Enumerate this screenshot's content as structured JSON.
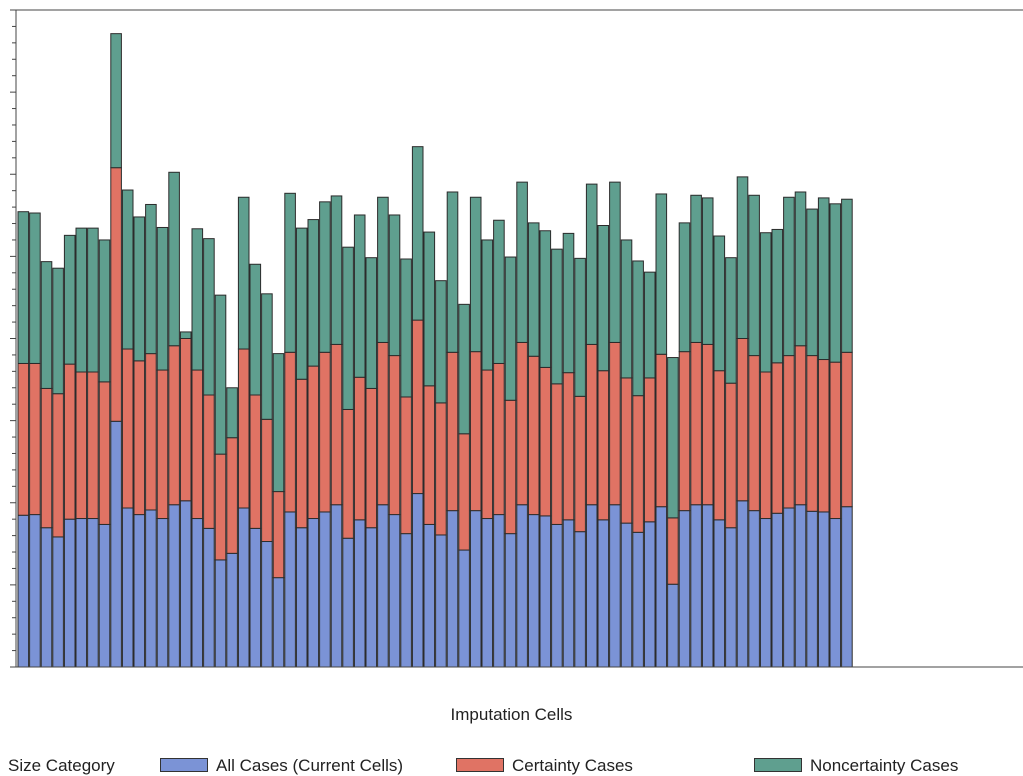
{
  "chart_data": {
    "type": "bar",
    "stacked": true,
    "title": "",
    "xlabel": "Imputation Cells",
    "ylabel": "",
    "ylim": [
      0,
      100
    ],
    "grid": false,
    "legend_placement": "bottom",
    "legend_title": "Size Category",
    "n_categories": 72,
    "series": [
      {
        "name": "All Cases (Current Cells)",
        "color": "#7b93d6",
        "values": [
          23.1,
          23.2,
          21.2,
          19.8,
          22.5,
          22.6,
          22.6,
          21.7,
          37.4,
          24.2,
          23.2,
          23.9,
          22.6,
          24.7,
          25.3,
          22.6,
          21.1,
          16.3,
          17.3,
          24.2,
          21.1,
          19.1,
          13.6,
          23.6,
          21.2,
          22.6,
          23.6,
          24.7,
          19.6,
          22.4,
          21.2,
          24.7,
          23.2,
          20.3,
          26.4,
          21.7,
          20.1,
          23.8,
          17.8,
          23.8,
          22.6,
          23.2,
          20.3,
          24.7,
          23.2,
          23.0,
          21.7,
          22.4,
          20.6,
          24.7,
          22.4,
          24.7,
          21.9,
          20.5,
          22.1,
          24.4,
          12.6,
          23.8,
          24.7,
          24.7,
          22.4,
          21.2,
          25.3,
          23.8,
          22.6,
          23.4,
          24.2,
          24.7,
          23.7,
          23.6,
          22.6,
          24.4
        ]
      },
      {
        "name": "Certainty Cases",
        "color": "#e07364",
        "values": [
          23.1,
          23.0,
          21.2,
          21.8,
          23.6,
          22.3,
          22.3,
          21.7,
          38.6,
          24.2,
          23.4,
          23.8,
          22.6,
          24.2,
          24.7,
          22.6,
          20.3,
          16.1,
          17.6,
          24.2,
          20.3,
          18.6,
          13.1,
          24.3,
          22.6,
          23.2,
          24.3,
          24.4,
          19.6,
          21.7,
          21.2,
          24.7,
          24.2,
          20.8,
          26.4,
          21.1,
          20.1,
          24.1,
          17.7,
          24.2,
          22.6,
          23.0,
          20.3,
          24.7,
          24.1,
          22.6,
          21.4,
          22.4,
          20.6,
          24.4,
          22.7,
          24.7,
          22.1,
          20.8,
          21.9,
          23.2,
          10.1,
          24.2,
          24.7,
          24.4,
          22.7,
          22.0,
          24.7,
          23.6,
          22.3,
          22.9,
          23.2,
          24.2,
          23.7,
          23.2,
          23.8,
          23.5
        ]
      },
      {
        "name": "Noncertainty Cases",
        "color": "#5f9f8f",
        "values": [
          23.1,
          22.9,
          19.3,
          19.1,
          19.6,
          21.9,
          21.9,
          21.6,
          20.4,
          24.2,
          21.9,
          22.7,
          21.7,
          26.4,
          1.0,
          21.5,
          23.8,
          24.2,
          7.6,
          23.1,
          19.9,
          19.1,
          21.0,
          24.2,
          23.0,
          22.3,
          22.9,
          22.6,
          24.7,
          24.7,
          19.9,
          22.1,
          21.4,
          21.0,
          26.4,
          23.4,
          18.6,
          24.4,
          19.7,
          23.5,
          19.8,
          21.8,
          21.8,
          24.4,
          20.3,
          20.8,
          20.5,
          21.2,
          21.0,
          24.4,
          22.1,
          24.4,
          21.0,
          20.5,
          16.1,
          24.4,
          24.4,
          19.6,
          22.4,
          22.3,
          20.5,
          19.1,
          24.6,
          24.4,
          21.2,
          20.3,
          24.1,
          23.4,
          22.3,
          24.6,
          24.1,
          23.3
        ]
      }
    ]
  }
}
